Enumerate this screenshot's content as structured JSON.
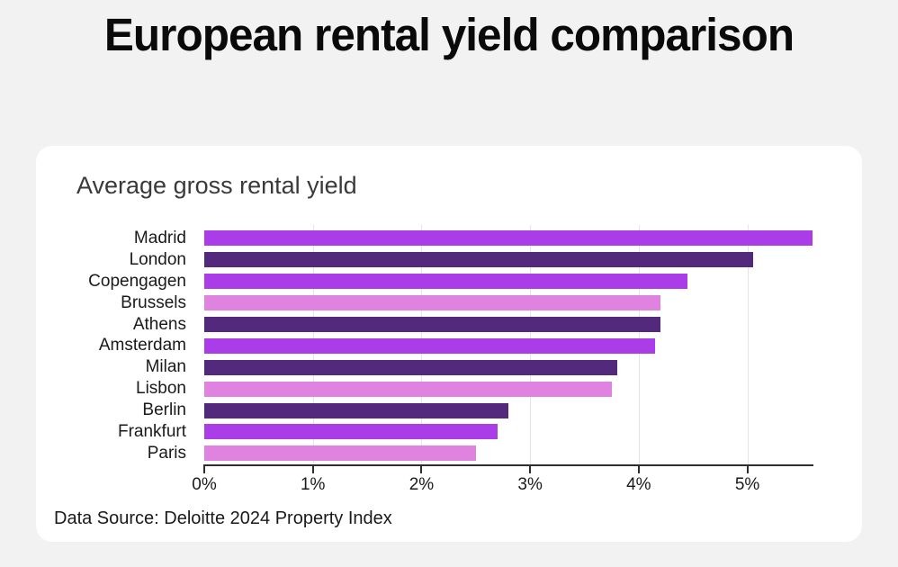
{
  "page": {
    "title": "European rental yield comparison",
    "background_color": "#f2f2f2"
  },
  "card": {
    "subtitle": "Average gross rental yield",
    "source": "Data Source: Deloitte 2024 Property Index",
    "background_color": "#ffffff"
  },
  "chart_data": {
    "type": "bar",
    "orientation": "horizontal",
    "title": "Average gross rental yield",
    "categories": [
      "Madrid",
      "London",
      "Copengagen",
      "Brussels",
      "Athens",
      "Amsterdam",
      "Milan",
      "Lisbon",
      "Berlin",
      "Frankfurt",
      "Paris"
    ],
    "values": [
      5.6,
      5.05,
      4.45,
      4.2,
      4.2,
      4.15,
      3.8,
      3.75,
      2.8,
      2.7,
      2.5
    ],
    "unit": "%",
    "xlabel": "",
    "ylabel": "",
    "xlim": [
      0,
      5.6
    ],
    "x_ticks": [
      {
        "value": 0,
        "label": "0%"
      },
      {
        "value": 1,
        "label": "1%"
      },
      {
        "value": 2,
        "label": "2%"
      },
      {
        "value": 3,
        "label": "3%"
      },
      {
        "value": 4,
        "label": "4%"
      },
      {
        "value": 5,
        "label": "5%"
      }
    ],
    "grid": "vertical-gridlines-on",
    "legend": "none",
    "palette": {
      "bright_violet": "#aa3de8",
      "dark_purple": "#53297d",
      "orchid": "#e083e0"
    },
    "bar_colors": [
      "#aa3de8",
      "#53297d",
      "#aa3de8",
      "#e083e0",
      "#53297d",
      "#aa3de8",
      "#53297d",
      "#e083e0",
      "#53297d",
      "#aa3de8",
      "#e083e0"
    ],
    "gridline_color": "#e4e4e4",
    "axis_color": "#2e2e2e"
  }
}
